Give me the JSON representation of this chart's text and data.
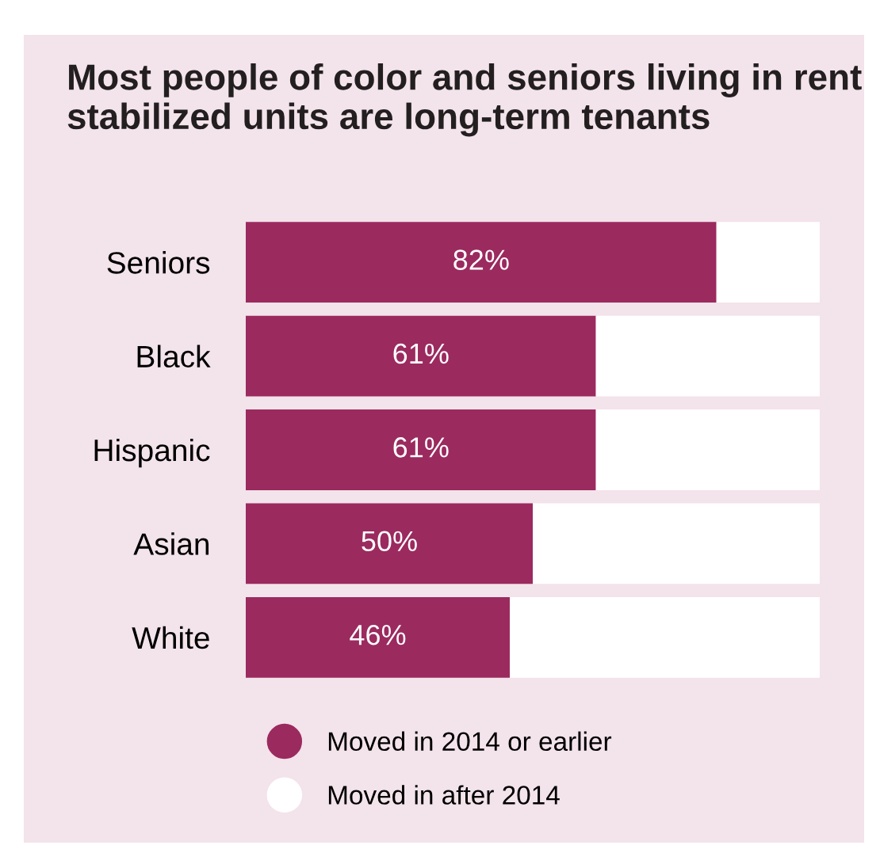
{
  "chart_data": {
    "type": "bar",
    "orientation": "horizontal",
    "stacked": true,
    "title": "Most people of color and seniors living in rent stabilized units are long-term tenants",
    "categories": [
      "Seniors",
      "Black",
      "Hispanic",
      "Asian",
      "White"
    ],
    "series": [
      {
        "name": "Moved in 2014 or earlier",
        "color": "#9b2a5f",
        "values": [
          82,
          61,
          61,
          50,
          46
        ],
        "value_labels": [
          "82%",
          "61%",
          "61%",
          "50%",
          "46%"
        ]
      },
      {
        "name": "Moved in after 2014",
        "color": "#ffffff",
        "values": [
          18,
          39,
          39,
          50,
          54
        ]
      }
    ],
    "legend": "bottom",
    "grid": false,
    "marker": "circle"
  }
}
